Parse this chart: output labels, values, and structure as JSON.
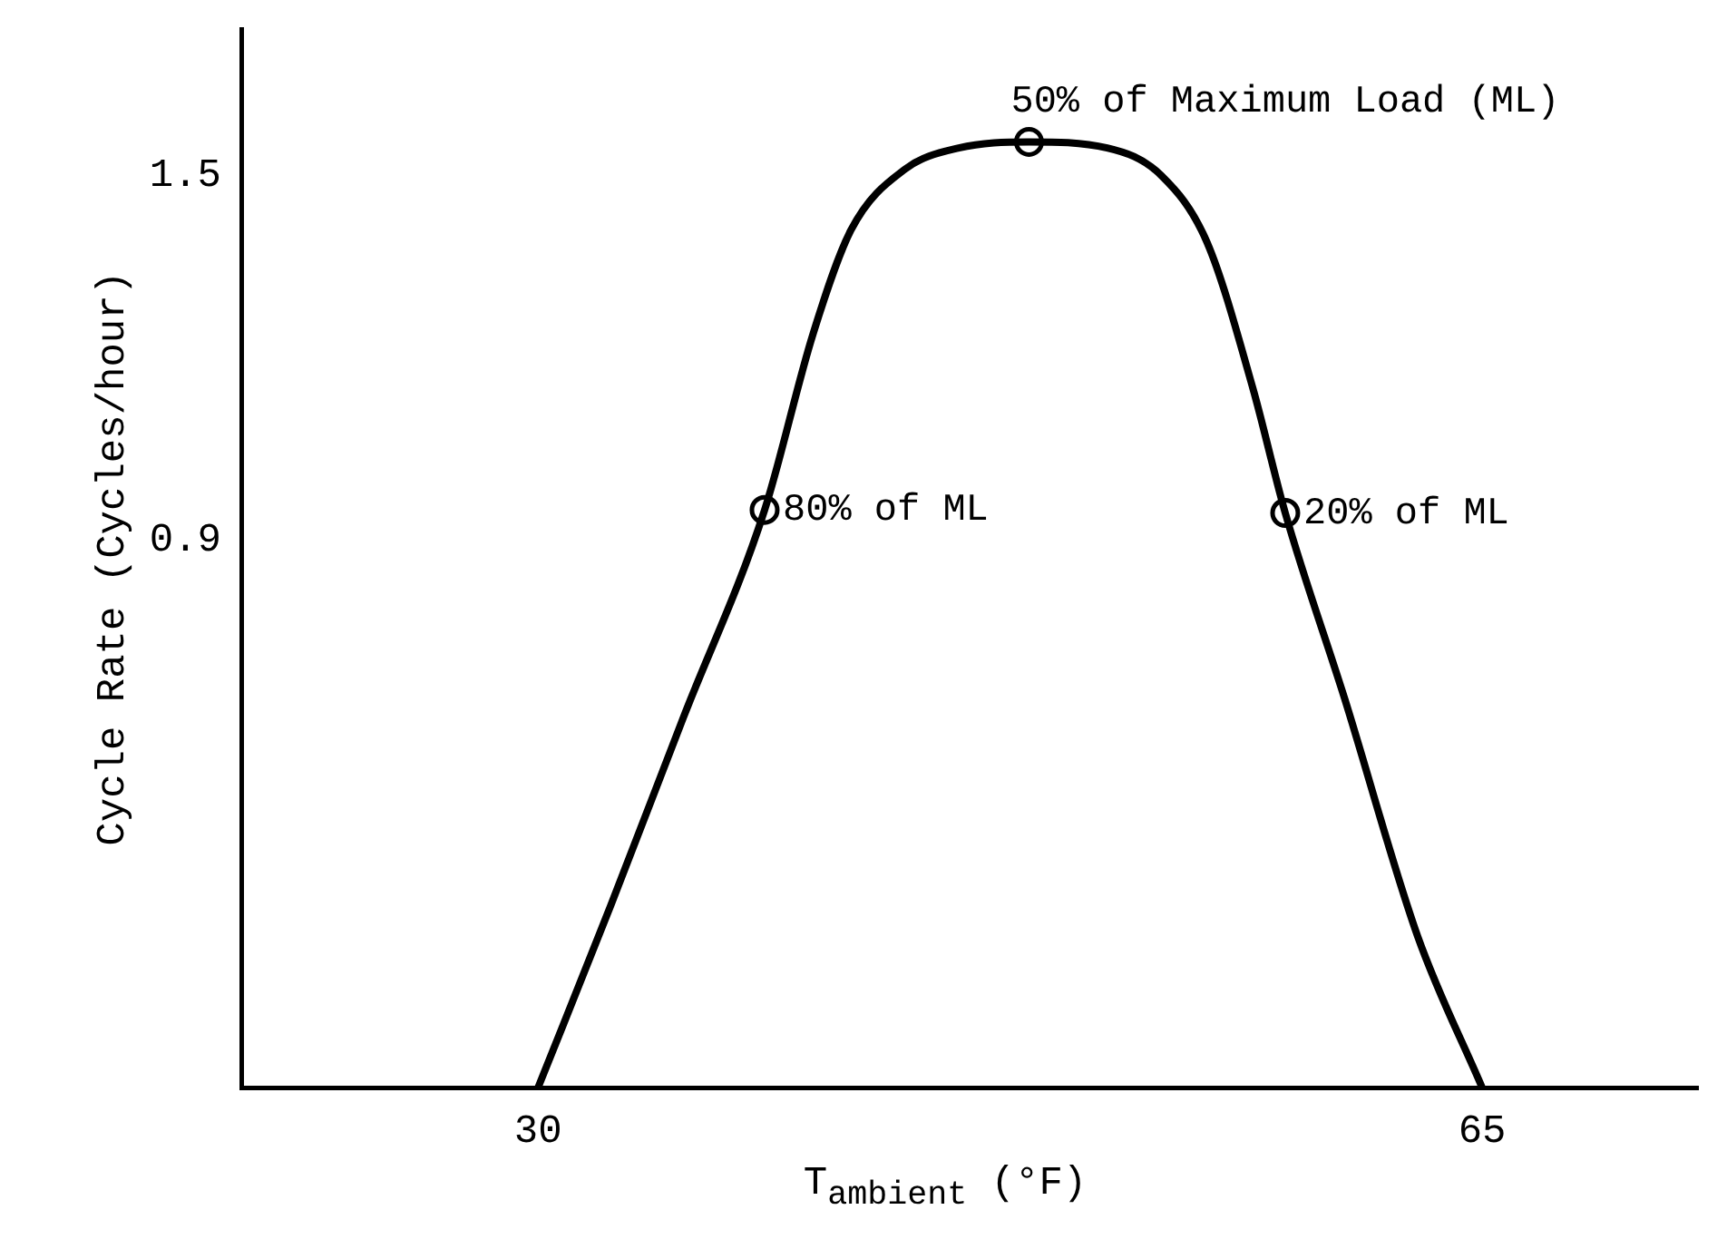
{
  "chart_data": {
    "type": "line",
    "xlabel": "T$_{ambient}$ (°F)",
    "ylabel": "Cycle Rate (Cycles/hour)",
    "xlim": [
      19,
      73
    ],
    "ylim": [
      0,
      1.74
    ],
    "xticks": [
      30,
      65
    ],
    "yticks": [
      0.9,
      1.5
    ],
    "grid": false,
    "legend": false,
    "series": [
      {
        "color": "#000000",
        "marker": "none",
        "x": [
          30,
          32.7,
          35.4,
          38.4,
          40.2,
          41.6,
          43.6,
          45.6,
          48.2,
          51.1,
          53.1,
          54.8,
          56.5,
          57.7,
          59.9,
          62.6,
          65
        ],
        "values": [
          0,
          0.3,
          0.61,
          0.95,
          1.24,
          1.41,
          1.51,
          1.545,
          1.555,
          1.545,
          1.5,
          1.39,
          1.15,
          0.945,
          0.64,
          0.25,
          0
        ]
      },
      {
        "type": "scatter",
        "color": "#000000",
        "marker": "circle",
        "x": [
          38.4,
          48.2,
          57.7
        ],
        "values": [
          0.95,
          1.555,
          0.945
        ]
      }
    ],
    "annotations": [
      {
        "text": "80% of ML",
        "x": 38.4,
        "y": 0.95
      },
      {
        "text": "50% of Maximum Load (ML)",
        "x": 48.2,
        "y": 1.555
      },
      {
        "text": "20% of ML",
        "x": 57.7,
        "y": 0.945
      }
    ]
  }
}
